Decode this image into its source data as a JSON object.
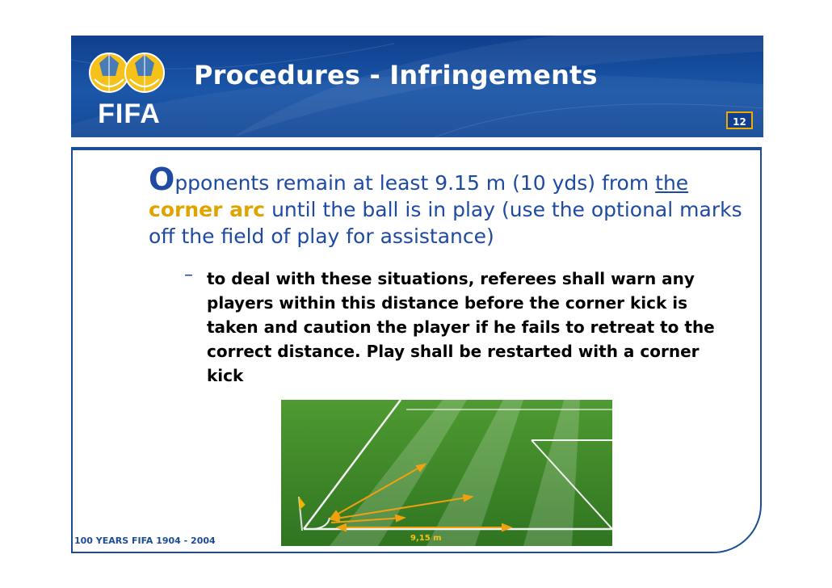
{
  "header": {
    "title": "Procedures - Infringements",
    "page_number": "12",
    "logo_text": "FIFA"
  },
  "main": {
    "drop_cap": "O",
    "text_part1": "pponents remain at least 9.15 m (10 yds) from ",
    "text_link": "the",
    "text_highlight": "corner arc",
    "text_part2": " until the ball is in play (use the optional marks off the field of play for assistance)",
    "bullet_marker": "–",
    "bullet_text": "to deal with these situations, referees shall warn any players within this distance before the corner kick is taken and caution the player if he fails to retreat to the correct distance. Play shall be restarted with a corner kick"
  },
  "figure": {
    "distance_label": "9,15 m"
  },
  "footer": {
    "text": "100 YEARS FIFA  1904 - 2004"
  },
  "colors": {
    "header_blue": "#1b56a8",
    "text_blue": "#1e4aa2",
    "accent_gold": "#e0a400",
    "grass": "#3f8a2a"
  }
}
